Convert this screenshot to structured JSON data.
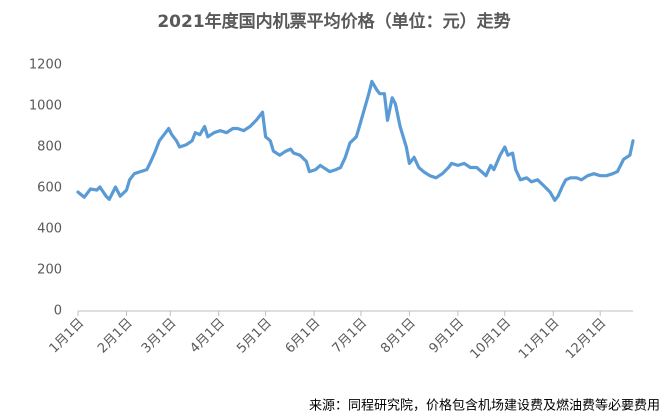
{
  "chart_data": {
    "type": "line",
    "title": "2021年度国内机票平均价格（单位：元）走势",
    "source": "来源：同程研究院，价格包含机场建设费及燃油费等必要费用",
    "x": [
      0,
      4,
      8,
      12,
      14,
      18,
      20,
      24,
      27,
      31,
      33,
      36,
      40,
      44,
      46,
      49,
      52,
      55,
      58,
      60,
      63,
      65,
      69,
      73,
      75,
      78,
      81,
      83,
      87,
      91,
      95,
      99,
      102,
      106,
      110,
      114,
      118,
      120,
      123,
      125,
      129,
      133,
      136,
      138,
      142,
      146,
      148,
      152,
      155,
      159,
      161,
      165,
      168,
      171,
      174,
      178,
      180,
      183,
      186,
      188,
      191,
      193,
      196,
      198,
      201,
      203,
      206,
      210,
      212,
      215,
      218,
      221,
      225,
      229,
      233,
      237,
      239,
      243,
      247,
      251,
      255,
      258,
      261,
      264,
      266,
      270,
      273,
      275,
      278,
      280,
      283,
      287,
      290,
      294,
      298,
      302,
      305,
      307,
      310,
      312,
      315,
      319,
      322,
      326,
      330,
      334,
      338,
      342,
      345,
      349,
      353,
      355
    ],
    "series": [
      {
        "name": "平均价格",
        "color": "#5b9bd5",
        "values": [
          580,
          555,
          595,
          590,
          605,
          560,
          545,
          605,
          560,
          590,
          640,
          670,
          680,
          690,
          720,
          770,
          830,
          860,
          890,
          860,
          830,
          800,
          810,
          830,
          870,
          860,
          900,
          850,
          870,
          880,
          870,
          890,
          890,
          880,
          900,
          930,
          970,
          850,
          830,
          780,
          760,
          780,
          790,
          770,
          760,
          730,
          680,
          690,
          710,
          690,
          680,
          690,
          700,
          750,
          820,
          850,
          900,
          980,
          1060,
          1120,
          1080,
          1060,
          1060,
          930,
          1040,
          1010,
          900,
          800,
          720,
          750,
          700,
          680,
          660,
          650,
          670,
          700,
          720,
          710,
          720,
          700,
          700,
          680,
          660,
          710,
          690,
          760,
          800,
          760,
          770,
          690,
          640,
          650,
          630,
          640,
          610,
          580,
          540,
          560,
          610,
          640,
          650,
          650,
          640,
          660,
          670,
          660,
          660,
          670,
          680,
          740,
          760,
          830
        ]
      }
    ],
    "xlim": [
      0,
      355
    ],
    "xticks": [
      {
        "value": 0,
        "label": "1月1日"
      },
      {
        "value": 31,
        "label": "2月1日"
      },
      {
        "value": 59,
        "label": "3月1日"
      },
      {
        "value": 90,
        "label": "4月1日"
      },
      {
        "value": 120,
        "label": "5月1日"
      },
      {
        "value": 151,
        "label": "6月1日"
      },
      {
        "value": 181,
        "label": "7月1日"
      },
      {
        "value": 212,
        "label": "8月1日"
      },
      {
        "value": 243,
        "label": "9月1日"
      },
      {
        "value": 273,
        "label": "10月1日"
      },
      {
        "value": 304,
        "label": "11月1日"
      },
      {
        "value": 334,
        "label": "12月1日"
      }
    ],
    "ylim": [
      0,
      1200
    ],
    "yticks": [
      0,
      200,
      400,
      600,
      800,
      1000,
      1200
    ],
    "grid": false
  }
}
